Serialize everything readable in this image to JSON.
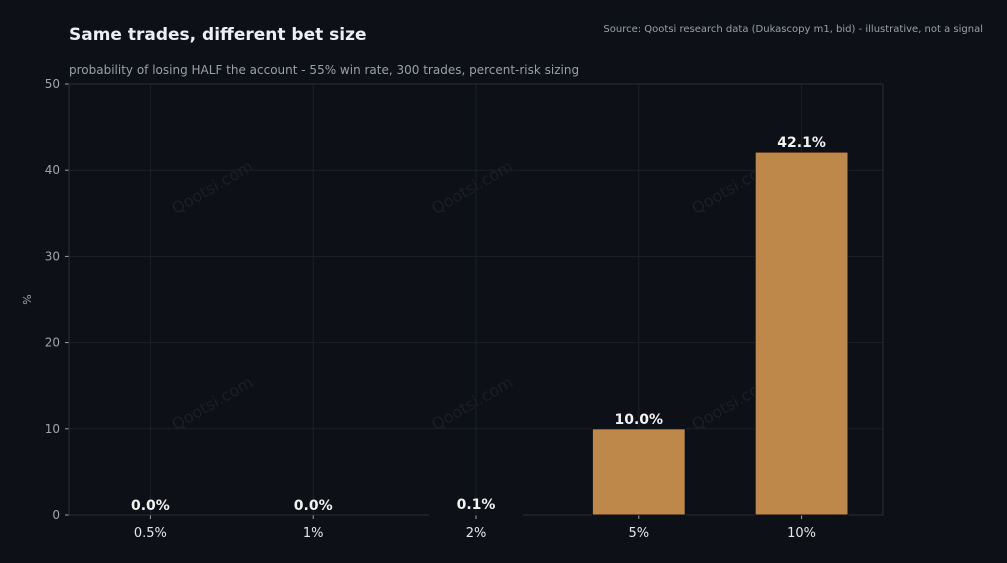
{
  "header": {
    "title": "Same trades, different bet size",
    "subtitle": "probability of losing HALF the account - 55% win rate, 300 trades, percent-risk sizing",
    "source": "Source: Qootsi research data (Dukascopy m1, bid) - illustrative, not a signal"
  },
  "watermark": "Qootsi.com",
  "colors": {
    "background": "#0d1016",
    "bar": "#bf884b",
    "grid": "#1c2028",
    "axis": "#2a2e36",
    "tick_text": "#a0a4ab",
    "label_text": "#f2f2f2"
  },
  "chart_data": {
    "type": "bar",
    "title": "Same trades, different bet size",
    "subtitle": "probability of losing HALF the account - 55% win rate, 300 trades, percent-risk sizing",
    "xlabel": "",
    "ylabel": "%",
    "categories": [
      "0.5%",
      "1%",
      "2%",
      "5%",
      "10%"
    ],
    "values": [
      0.0,
      0.0,
      0.1,
      10.0,
      42.1
    ],
    "data_labels": [
      "0.0%",
      "0.0%",
      "0.1%",
      "10.0%",
      "42.1%"
    ],
    "ylim": [
      0,
      50
    ],
    "yticks": [
      0,
      10,
      20,
      30,
      40,
      50
    ],
    "grid": true,
    "legend": "none"
  }
}
